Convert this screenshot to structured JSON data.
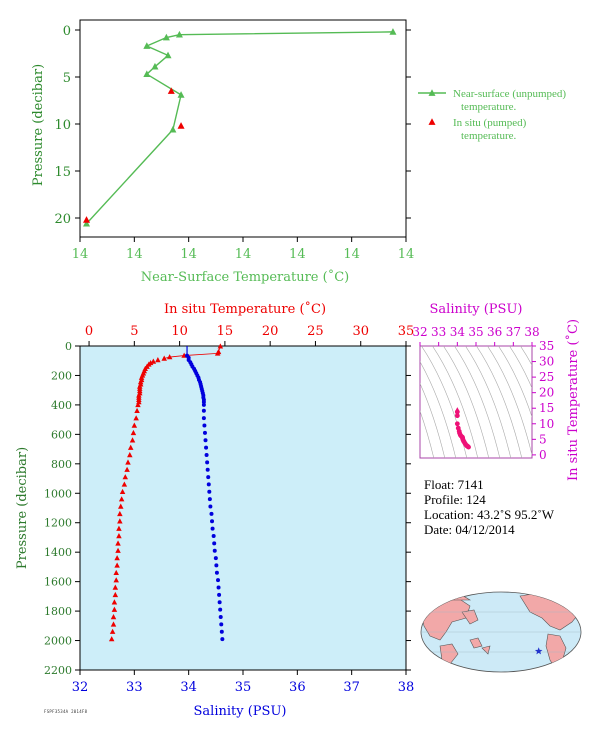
{
  "chart_data": [
    {
      "id": "near-surface",
      "type": "line",
      "xlabel": "Near-Surface Temperature (˚C)",
      "ylabel": "Pressure (decibar)",
      "x_tick_labels": [
        "14",
        "14",
        "14",
        "14",
        "14",
        "14",
        "14"
      ],
      "y_ticks": [
        0,
        5,
        10,
        15,
        20
      ],
      "ylim": [
        0,
        22
      ],
      "colors": {
        "unpumped": "#55bb55",
        "pumped": "#ee0000",
        "axis_text": "#55bb55",
        "label_text": "#2d8a2d"
      },
      "legend_placement": "right",
      "series": [
        {
          "name": "Near-surface (unpumped) temperature.",
          "points": [
            [
              0.96,
              0.2
            ],
            [
              0.305,
              0.5
            ],
            [
              0.265,
              0.8
            ],
            [
              0.205,
              1.7
            ],
            [
              0.27,
              2.7
            ],
            [
              0.23,
              3.9
            ],
            [
              0.205,
              4.7
            ],
            [
              0.31,
              6.9
            ],
            [
              0.285,
              10.6
            ],
            [
              0.02,
              20.6
            ]
          ]
        },
        {
          "name": "In situ (pumped) temperature.",
          "points": [
            [
              0.28,
              6.5
            ],
            [
              0.31,
              10.2
            ],
            [
              0.02,
              20.2
            ]
          ]
        }
      ]
    },
    {
      "id": "profile",
      "type": "scatter",
      "top_xlabel": "In situ Temperature (˚C)",
      "bottom_xlabel": "Salinity (PSU)",
      "ylabel": "Pressure (decibar)",
      "temp_ticks": [
        0,
        5,
        10,
        15,
        20,
        25,
        30,
        35
      ],
      "sal_ticks": [
        32,
        33,
        34,
        35,
        36,
        37,
        38
      ],
      "p_ticks": [
        0,
        200,
        400,
        600,
        800,
        1000,
        1200,
        1400,
        1600,
        1800,
        2000,
        2200
      ],
      "temp_range": [
        -1,
        35
      ],
      "sal_range": [
        32,
        38
      ],
      "p_range": [
        0,
        2200
      ],
      "colors": {
        "temperature": "#ee0000",
        "salinity": "#0000dd",
        "plot_bg": "#cdeef9"
      },
      "temperature_profile": [
        [
          14.5,
          2
        ],
        [
          14.3,
          40
        ],
        [
          14.2,
          50
        ],
        [
          10.5,
          65
        ],
        [
          8.9,
          75
        ],
        [
          8.3,
          85
        ],
        [
          7.6,
          95
        ],
        [
          7.1,
          105
        ],
        [
          6.8,
          115
        ],
        [
          6.6,
          125
        ],
        [
          6.4,
          140
        ],
        [
          6.2,
          155
        ],
        [
          6.1,
          170
        ],
        [
          6.0,
          185
        ],
        [
          5.9,
          200
        ],
        [
          5.8,
          215
        ],
        [
          5.8,
          230
        ],
        [
          5.7,
          245
        ],
        [
          5.7,
          260
        ],
        [
          5.6,
          275
        ],
        [
          5.6,
          290
        ],
        [
          5.6,
          305
        ],
        [
          5.6,
          320
        ],
        [
          5.5,
          335
        ],
        [
          5.5,
          350
        ],
        [
          5.5,
          365
        ],
        [
          5.5,
          380
        ],
        [
          5.4,
          400
        ],
        [
          5.3,
          440
        ],
        [
          5.2,
          490
        ],
        [
          5.0,
          540
        ],
        [
          4.9,
          590
        ],
        [
          4.8,
          640
        ],
        [
          4.6,
          690
        ],
        [
          4.5,
          740
        ],
        [
          4.3,
          790
        ],
        [
          4.2,
          840
        ],
        [
          4.0,
          890
        ],
        [
          3.9,
          940
        ],
        [
          3.7,
          990
        ],
        [
          3.6,
          1040
        ],
        [
          3.5,
          1090
        ],
        [
          3.4,
          1140
        ],
        [
          3.4,
          1190
        ],
        [
          3.3,
          1240
        ],
        [
          3.3,
          1290
        ],
        [
          3.2,
          1340
        ],
        [
          3.2,
          1390
        ],
        [
          3.1,
          1440
        ],
        [
          3.1,
          1490
        ],
        [
          3.0,
          1540
        ],
        [
          3.0,
          1590
        ],
        [
          2.9,
          1640
        ],
        [
          2.9,
          1690
        ],
        [
          2.8,
          1740
        ],
        [
          2.8,
          1790
        ],
        [
          2.7,
          1840
        ],
        [
          2.7,
          1890
        ],
        [
          2.6,
          1940
        ],
        [
          2.5,
          1990
        ]
      ],
      "salinity_profile": [
        [
          33.97,
          65
        ],
        [
          34.0,
          80
        ],
        [
          34.0,
          95
        ],
        [
          34.03,
          110
        ],
        [
          34.05,
          125
        ],
        [
          34.07,
          140
        ],
        [
          34.1,
          155
        ],
        [
          34.12,
          170
        ],
        [
          34.14,
          185
        ],
        [
          34.16,
          200
        ],
        [
          34.18,
          215
        ],
        [
          34.19,
          230
        ],
        [
          34.21,
          245
        ],
        [
          34.22,
          260
        ],
        [
          34.23,
          275
        ],
        [
          34.24,
          290
        ],
        [
          34.25,
          305
        ],
        [
          34.26,
          320
        ],
        [
          34.27,
          335
        ],
        [
          34.27,
          350
        ],
        [
          34.28,
          365
        ],
        [
          34.28,
          380
        ],
        [
          34.28,
          400
        ],
        [
          34.28,
          440
        ],
        [
          34.28,
          490
        ],
        [
          34.29,
          540
        ],
        [
          34.3,
          590
        ],
        [
          34.31,
          640
        ],
        [
          34.32,
          690
        ],
        [
          34.33,
          740
        ],
        [
          34.34,
          790
        ],
        [
          34.35,
          840
        ],
        [
          34.36,
          890
        ],
        [
          34.37,
          940
        ],
        [
          34.38,
          990
        ],
        [
          34.39,
          1040
        ],
        [
          34.4,
          1090
        ],
        [
          34.42,
          1140
        ],
        [
          34.43,
          1190
        ],
        [
          34.44,
          1240
        ],
        [
          34.46,
          1290
        ],
        [
          34.47,
          1340
        ],
        [
          34.48,
          1390
        ],
        [
          34.5,
          1440
        ],
        [
          34.51,
          1490
        ],
        [
          34.52,
          1540
        ],
        [
          34.54,
          1590
        ],
        [
          34.55,
          1640
        ],
        [
          34.56,
          1690
        ],
        [
          34.57,
          1740
        ],
        [
          34.58,
          1790
        ],
        [
          34.59,
          1840
        ],
        [
          34.6,
          1890
        ],
        [
          34.61,
          1940
        ],
        [
          34.62,
          1990
        ]
      ]
    },
    {
      "id": "ts-diagram",
      "type": "scatter",
      "top_xlabel": "Salinity (PSU)",
      "right_ylabel": "In situ Temperature (˚C)",
      "sal_ticks": [
        32,
        33,
        34,
        35,
        36,
        37,
        38
      ],
      "temp_ticks": [
        0,
        5,
        10,
        15,
        20,
        25,
        30,
        35
      ],
      "sal_range": [
        32,
        38
      ],
      "temp_range": [
        -1,
        35
      ],
      "colors": {
        "axis": "#cc00cc",
        "points": "#ee1177",
        "border": "#aa44aa",
        "isopycnal": "#aaaaaa"
      },
      "points": [
        [
          34.0,
          14.5
        ],
        [
          34.0,
          13.8
        ],
        [
          34.0,
          12.6
        ],
        [
          34.0,
          10.0
        ],
        [
          34.05,
          8.6
        ],
        [
          34.1,
          7.6
        ],
        [
          34.12,
          7.0
        ],
        [
          34.16,
          6.4
        ],
        [
          34.2,
          6.1
        ],
        [
          34.25,
          5.8
        ],
        [
          34.28,
          5.6
        ],
        [
          34.28,
          5.4
        ],
        [
          34.29,
          5.1
        ],
        [
          34.31,
          4.8
        ],
        [
          34.33,
          4.5
        ],
        [
          34.36,
          4.2
        ],
        [
          34.4,
          3.8
        ],
        [
          34.44,
          3.4
        ],
        [
          34.48,
          3.1
        ],
        [
          34.52,
          2.9
        ],
        [
          34.56,
          2.7
        ],
        [
          34.6,
          2.5
        ]
      ]
    }
  ],
  "float_info": {
    "float": "Float:  7141",
    "profile": "Profile:  124",
    "location": "Location:  43.2˚S  95.2˚W",
    "date": "Date:  04/12/2014"
  },
  "footer_id": "FSPF3534A 2014F8",
  "map": {
    "colors": {
      "ocean": "#cdeaf7",
      "land": "#f2a8a8",
      "marker": "#2233cc"
    },
    "marker": {
      "lat": -43.2,
      "lon": -95.2
    }
  }
}
